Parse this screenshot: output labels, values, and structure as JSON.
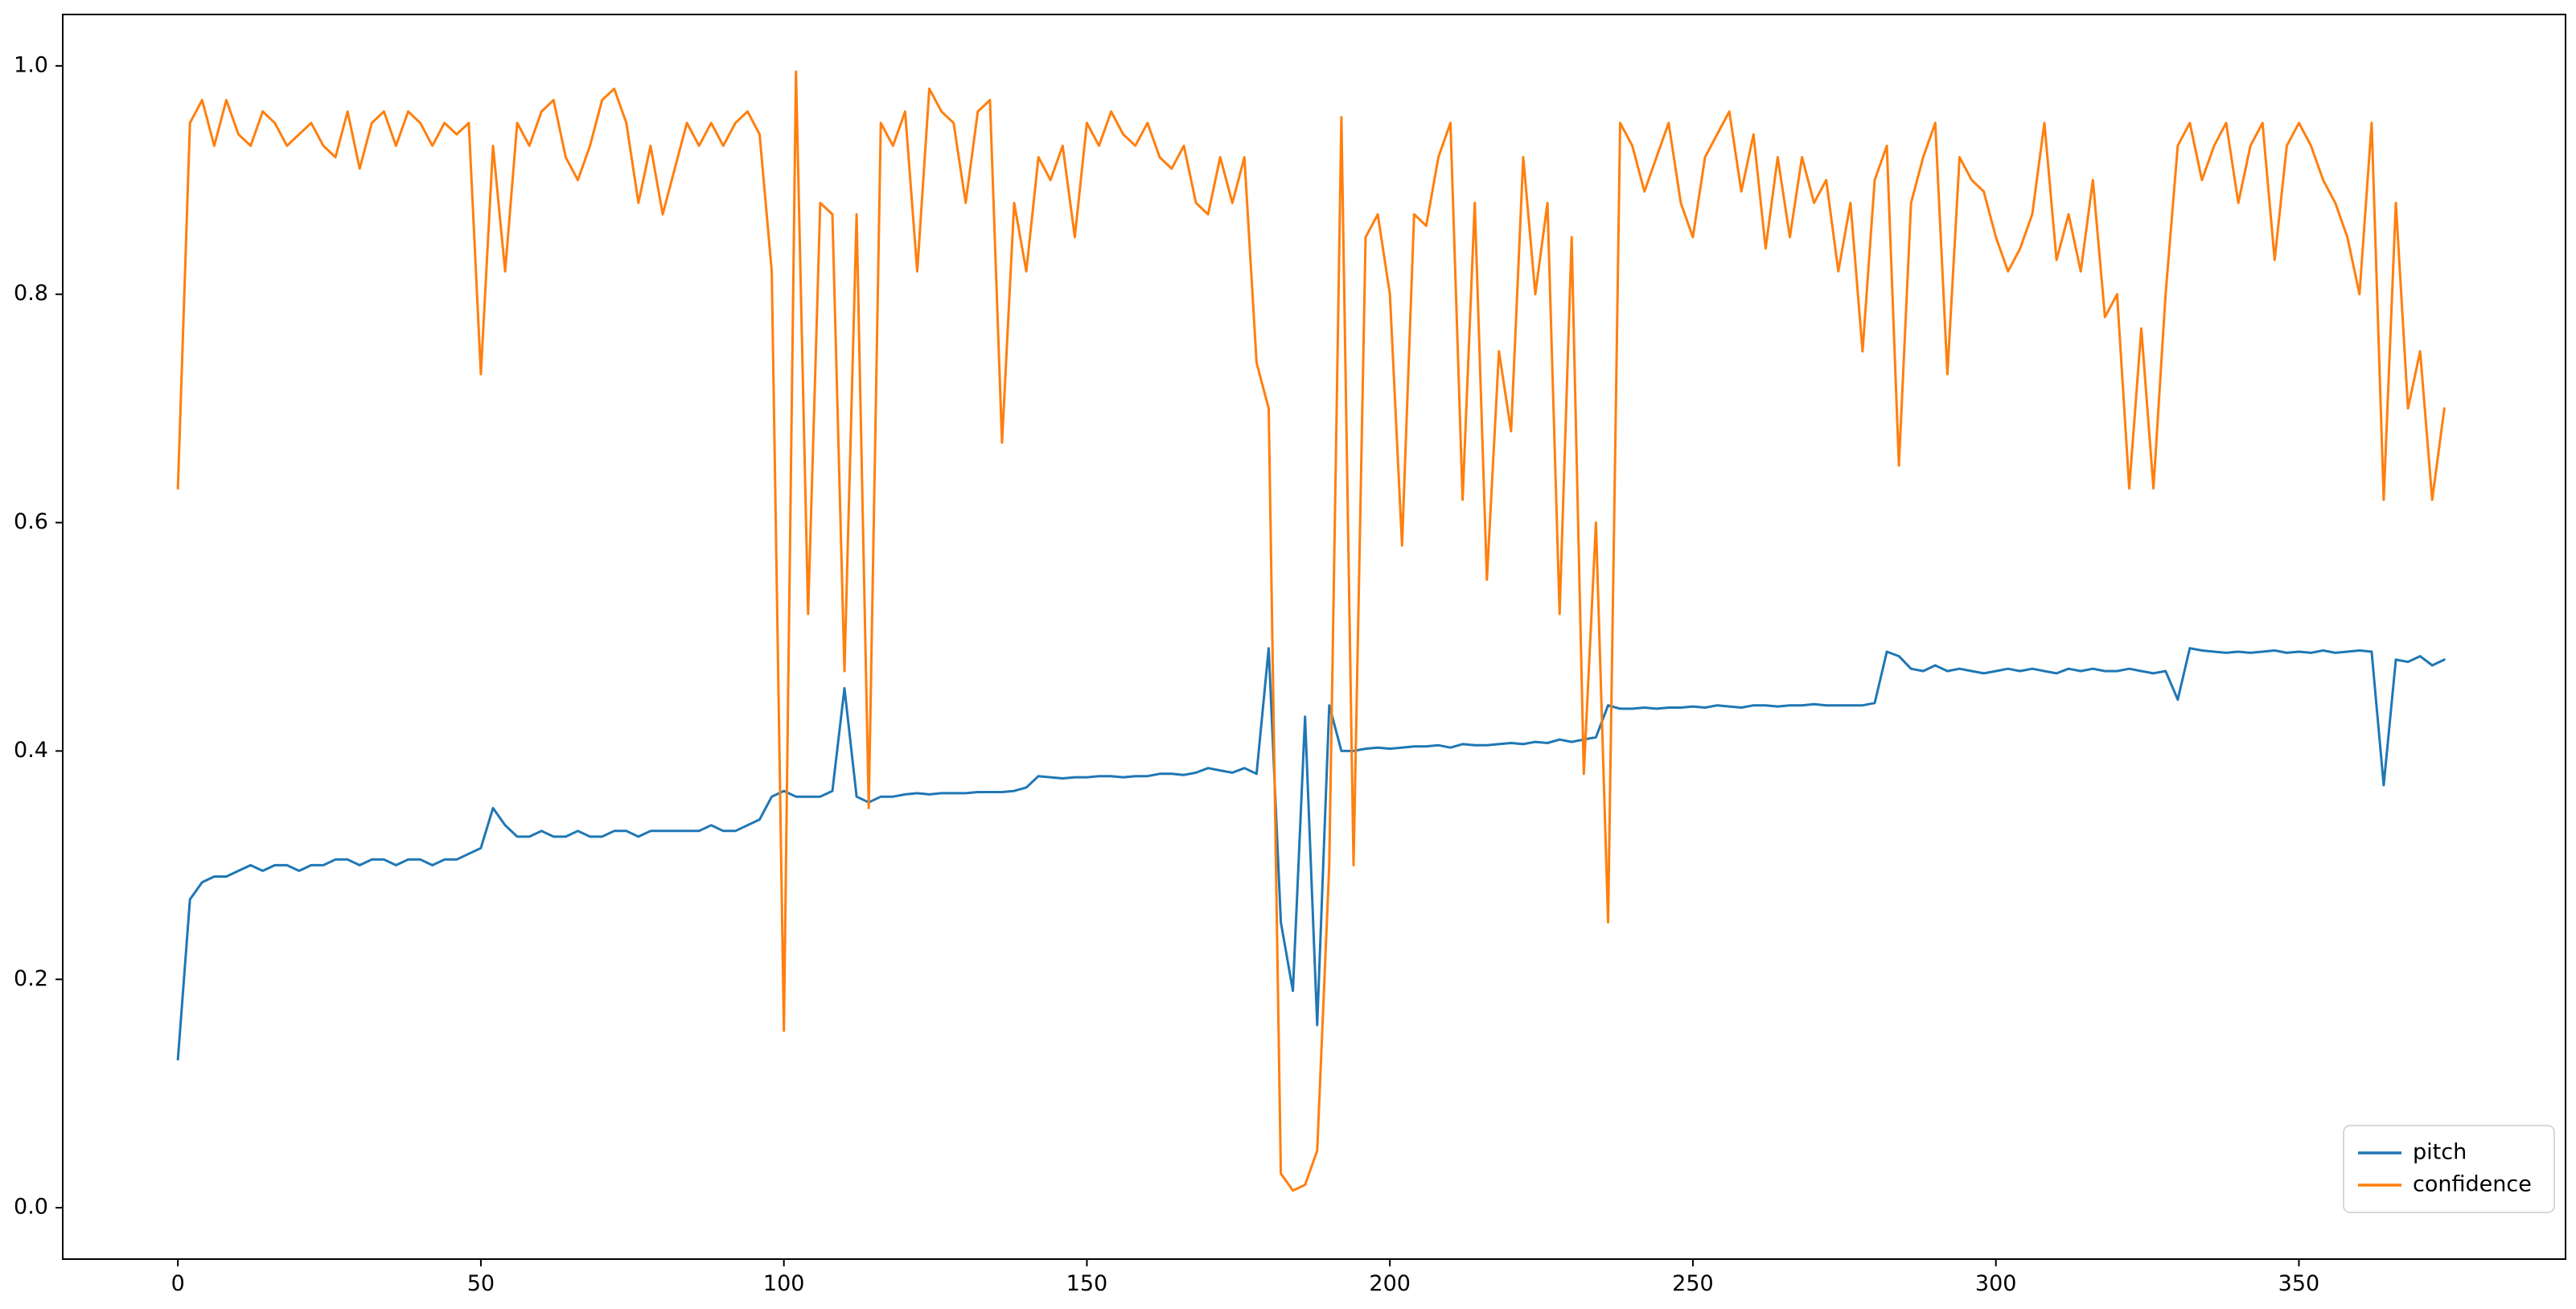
{
  "figure": {
    "background": "#ffffff",
    "spine_color": "#000000",
    "tick_color": "#000000",
    "legend_edge_color": "#cccccc"
  },
  "chart_data": {
    "type": "line",
    "title": "",
    "xlabel": "",
    "ylabel": "",
    "xlim": [
      -19,
      394
    ],
    "ylim": [
      -0.045,
      1.045
    ],
    "grid": false,
    "x_ticks": [
      0,
      50,
      100,
      150,
      200,
      250,
      300,
      350
    ],
    "y_ticks": [
      0.0,
      0.2,
      0.4,
      0.6,
      0.8,
      1.0
    ],
    "y_tick_labels": [
      "0.0",
      "0.2",
      "0.4",
      "0.6",
      "0.8",
      "1.0"
    ],
    "legend": {
      "position": "lower right",
      "entries": [
        "pitch",
        "confidence"
      ]
    },
    "x": [
      0,
      2,
      4,
      6,
      8,
      10,
      12,
      14,
      16,
      18,
      20,
      22,
      24,
      26,
      28,
      30,
      32,
      34,
      36,
      38,
      40,
      42,
      44,
      46,
      48,
      50,
      52,
      54,
      56,
      58,
      60,
      62,
      64,
      66,
      68,
      70,
      72,
      74,
      76,
      78,
      80,
      82,
      84,
      86,
      88,
      90,
      92,
      94,
      96,
      98,
      100,
      102,
      104,
      106,
      108,
      110,
      112,
      114,
      116,
      118,
      120,
      122,
      124,
      126,
      128,
      130,
      132,
      134,
      136,
      138,
      140,
      142,
      144,
      146,
      148,
      150,
      152,
      154,
      156,
      158,
      160,
      162,
      164,
      166,
      168,
      170,
      172,
      174,
      176,
      178,
      180,
      182,
      184,
      186,
      188,
      190,
      192,
      194,
      196,
      198,
      200,
      202,
      204,
      206,
      208,
      210,
      212,
      214,
      216,
      218,
      220,
      222,
      224,
      226,
      228,
      230,
      232,
      234,
      236,
      238,
      240,
      242,
      244,
      246,
      248,
      250,
      252,
      254,
      256,
      258,
      260,
      262,
      264,
      266,
      268,
      270,
      272,
      274,
      276,
      278,
      280,
      282,
      284,
      286,
      288,
      290,
      292,
      294,
      296,
      298,
      300,
      302,
      304,
      306,
      308,
      310,
      312,
      314,
      316,
      318,
      320,
      322,
      324,
      326,
      328,
      330,
      332,
      334,
      336,
      338,
      340,
      342,
      344,
      346,
      348,
      350,
      352,
      354,
      356,
      358,
      360,
      362,
      364,
      366,
      368,
      370,
      372,
      374
    ],
    "series": [
      {
        "name": "pitch",
        "color": "#1f77b4",
        "values": [
          0.13,
          0.27,
          0.285,
          0.29,
          0.29,
          0.295,
          0.3,
          0.295,
          0.3,
          0.3,
          0.295,
          0.3,
          0.3,
          0.305,
          0.305,
          0.3,
          0.305,
          0.305,
          0.3,
          0.305,
          0.305,
          0.3,
          0.305,
          0.305,
          0.31,
          0.315,
          0.35,
          0.335,
          0.325,
          0.325,
          0.33,
          0.325,
          0.325,
          0.33,
          0.325,
          0.325,
          0.33,
          0.33,
          0.325,
          0.33,
          0.33,
          0.33,
          0.33,
          0.33,
          0.335,
          0.33,
          0.33,
          0.335,
          0.34,
          0.36,
          0.365,
          0.36,
          0.36,
          0.36,
          0.365,
          0.455,
          0.36,
          0.355,
          0.36,
          0.36,
          0.362,
          0.363,
          0.362,
          0.363,
          0.363,
          0.363,
          0.364,
          0.364,
          0.364,
          0.365,
          0.368,
          0.378,
          0.377,
          0.376,
          0.377,
          0.377,
          0.378,
          0.378,
          0.377,
          0.378,
          0.378,
          0.38,
          0.38,
          0.379,
          0.381,
          0.385,
          0.383,
          0.381,
          0.385,
          0.38,
          0.49,
          0.25,
          0.19,
          0.43,
          0.16,
          0.44,
          0.4,
          0.4,
          0.402,
          0.403,
          0.402,
          0.403,
          0.404,
          0.404,
          0.405,
          0.403,
          0.406,
          0.405,
          0.405,
          0.406,
          0.407,
          0.406,
          0.408,
          0.407,
          0.41,
          0.408,
          0.41,
          0.412,
          0.44,
          0.437,
          0.437,
          0.438,
          0.437,
          0.438,
          0.438,
          0.439,
          0.438,
          0.44,
          0.439,
          0.438,
          0.44,
          0.44,
          0.439,
          0.44,
          0.44,
          0.441,
          0.44,
          0.44,
          0.44,
          0.44,
          0.442,
          0.487,
          0.483,
          0.472,
          0.47,
          0.475,
          0.47,
          0.472,
          0.47,
          0.468,
          0.47,
          0.472,
          0.47,
          0.472,
          0.47,
          0.468,
          0.472,
          0.47,
          0.472,
          0.47,
          0.47,
          0.472,
          0.47,
          0.468,
          0.47,
          0.445,
          0.49,
          0.488,
          0.487,
          0.486,
          0.487,
          0.486,
          0.487,
          0.488,
          0.486,
          0.487,
          0.486,
          0.488,
          0.486,
          0.487,
          0.488,
          0.487,
          0.37,
          0.48,
          0.478,
          0.483,
          0.475,
          0.48
        ]
      },
      {
        "name": "confidence",
        "color": "#ff7f0e",
        "values": [
          0.63,
          0.95,
          0.97,
          0.93,
          0.97,
          0.94,
          0.93,
          0.96,
          0.95,
          0.93,
          0.94,
          0.95,
          0.93,
          0.92,
          0.96,
          0.91,
          0.95,
          0.96,
          0.93,
          0.96,
          0.95,
          0.93,
          0.95,
          0.94,
          0.95,
          0.73,
          0.93,
          0.82,
          0.95,
          0.93,
          0.96,
          0.97,
          0.92,
          0.9,
          0.93,
          0.97,
          0.98,
          0.95,
          0.88,
          0.93,
          0.87,
          0.91,
          0.95,
          0.93,
          0.95,
          0.93,
          0.95,
          0.96,
          0.94,
          0.82,
          0.155,
          0.995,
          0.52,
          0.88,
          0.87,
          0.47,
          0.87,
          0.35,
          0.95,
          0.93,
          0.96,
          0.82,
          0.98,
          0.96,
          0.95,
          0.88,
          0.96,
          0.97,
          0.67,
          0.88,
          0.82,
          0.92,
          0.9,
          0.93,
          0.85,
          0.95,
          0.93,
          0.96,
          0.94,
          0.93,
          0.95,
          0.92,
          0.91,
          0.93,
          0.88,
          0.87,
          0.92,
          0.88,
          0.92,
          0.74,
          0.7,
          0.03,
          0.015,
          0.02,
          0.05,
          0.3,
          0.955,
          0.3,
          0.85,
          0.87,
          0.8,
          0.58,
          0.87,
          0.86,
          0.92,
          0.95,
          0.62,
          0.88,
          0.55,
          0.75,
          0.68,
          0.92,
          0.8,
          0.88,
          0.52,
          0.85,
          0.38,
          0.6,
          0.25,
          0.95,
          0.93,
          0.89,
          0.92,
          0.95,
          0.88,
          0.85,
          0.92,
          0.94,
          0.96,
          0.89,
          0.94,
          0.84,
          0.92,
          0.85,
          0.92,
          0.88,
          0.9,
          0.82,
          0.88,
          0.75,
          0.9,
          0.93,
          0.65,
          0.88,
          0.92,
          0.95,
          0.73,
          0.92,
          0.9,
          0.89,
          0.85,
          0.82,
          0.84,
          0.87,
          0.95,
          0.83,
          0.87,
          0.82,
          0.9,
          0.78,
          0.8,
          0.63,
          0.77,
          0.63,
          0.8,
          0.93,
          0.95,
          0.9,
          0.93,
          0.95,
          0.88,
          0.93,
          0.95,
          0.83,
          0.93,
          0.95,
          0.93,
          0.9,
          0.88,
          0.85,
          0.8,
          0.95,
          0.62,
          0.88,
          0.7,
          0.75,
          0.62,
          0.7
        ]
      }
    ]
  }
}
